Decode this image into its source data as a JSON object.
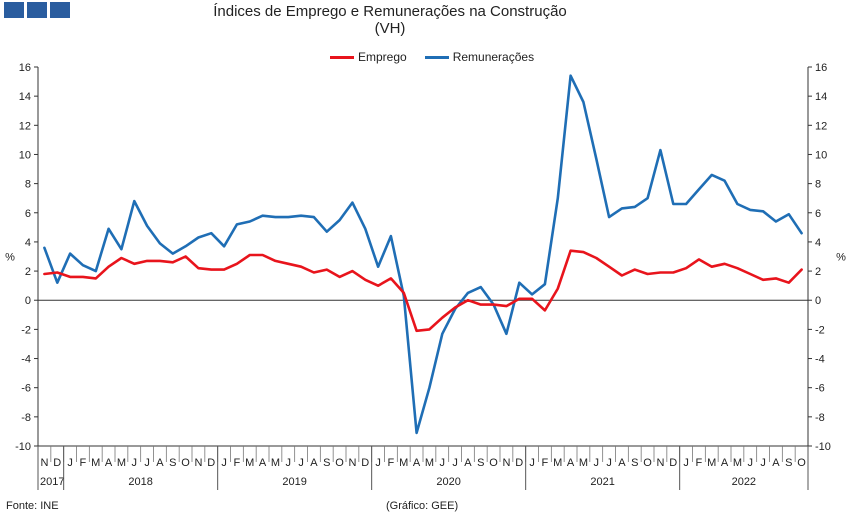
{
  "title": "Índices de Emprego e Remunerações na Construção",
  "subtitle": "(VH)",
  "source": "Fonte: INE",
  "credit": "(Gráfico: GEE)",
  "colors": {
    "emprego": "#e8141c",
    "remuneracoes": "#1f6eb5"
  },
  "chart_data": {
    "type": "line",
    "title": "Índices de Emprego e Remunerações na Construção",
    "subtitle": "(VH)",
    "ylabel_left": "%",
    "ylabel_right": "%",
    "ylim": [
      -10,
      16
    ],
    "yticks": [
      16,
      14,
      12,
      10,
      8,
      6,
      4,
      2,
      0,
      -2,
      -4,
      -6,
      -8,
      -10
    ],
    "grid": false,
    "legend_position": "top-center",
    "x_month_labels": [
      "N",
      "D",
      "J",
      "F",
      "M",
      "A",
      "M",
      "J",
      "J",
      "A",
      "S",
      "O",
      "N",
      "D",
      "J",
      "F",
      "M",
      "A",
      "M",
      "J",
      "J",
      "A",
      "S",
      "O",
      "N",
      "D",
      "J",
      "F",
      "M",
      "A",
      "M",
      "J",
      "J",
      "A",
      "S",
      "O",
      "N",
      "D",
      "J",
      "F",
      "M",
      "A",
      "M",
      "J",
      "J",
      "A",
      "S",
      "O",
      "N",
      "D",
      "J",
      "F",
      "M",
      "A",
      "M",
      "J",
      "J",
      "A",
      "S",
      "O"
    ],
    "year_groups": [
      {
        "label": "2017",
        "start": 0,
        "count": 2
      },
      {
        "label": "2018",
        "start": 2,
        "count": 12
      },
      {
        "label": "2019",
        "start": 14,
        "count": 12
      },
      {
        "label": "2020",
        "start": 26,
        "count": 12
      },
      {
        "label": "2021",
        "start": 38,
        "count": 12
      },
      {
        "label": "2022",
        "start": 50,
        "count": 10
      }
    ],
    "series": [
      {
        "name": "Emprego",
        "values": [
          1.8,
          1.9,
          1.6,
          1.6,
          1.5,
          2.3,
          2.9,
          2.5,
          2.7,
          2.7,
          2.6,
          3.0,
          2.2,
          2.1,
          2.1,
          2.5,
          3.1,
          3.1,
          2.7,
          2.5,
          2.3,
          1.9,
          2.1,
          1.6,
          2.0,
          1.4,
          1.0,
          1.5,
          0.5,
          -2.1,
          -2.0,
          -1.2,
          -0.5,
          0.0,
          -0.3,
          -0.3,
          -0.4,
          0.1,
          0.1,
          -0.7,
          0.8,
          3.4,
          3.3,
          2.9,
          2.3,
          1.7,
          2.1,
          1.8,
          1.9,
          1.9,
          2.2,
          2.8,
          2.3,
          2.5,
          2.2,
          1.8,
          1.4,
          1.5,
          1.2,
          2.1
        ]
      },
      {
        "name": "Remunerações",
        "values": [
          3.6,
          1.2,
          3.2,
          2.4,
          2.0,
          4.9,
          3.5,
          6.8,
          5.1,
          3.9,
          3.2,
          3.7,
          4.3,
          4.6,
          3.7,
          5.2,
          5.4,
          5.8,
          5.7,
          5.7,
          5.8,
          5.7,
          4.7,
          5.5,
          6.7,
          4.9,
          2.3,
          4.4,
          0.3,
          -9.1,
          -6.0,
          -2.3,
          -0.6,
          0.5,
          0.9,
          -0.3,
          -2.3,
          1.2,
          0.4,
          1.1,
          7.0,
          15.4,
          13.6,
          9.7,
          5.7,
          6.3,
          6.4,
          7.0,
          10.3,
          6.6,
          6.6,
          7.6,
          8.6,
          8.2,
          6.6,
          6.2,
          6.1,
          5.4,
          5.9,
          4.6
        ]
      }
    ]
  }
}
